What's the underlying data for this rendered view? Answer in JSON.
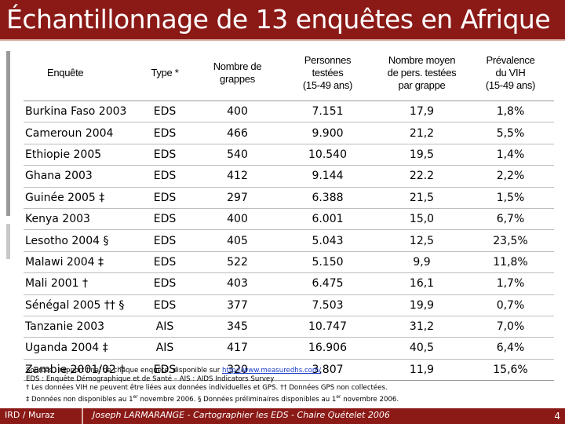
{
  "title": "Échantillonnage de 13 enquêtes en Afrique",
  "table": {
    "headers": [
      [
        "Enquête"
      ],
      [
        "Type *"
      ],
      [
        "Nombre de",
        "grappes"
      ],
      [
        "Personnes",
        "testées",
        "(15-49 ans)"
      ],
      [
        "Nombre moyen",
        "de pers. testées",
        "par grappe"
      ],
      [
        "Prévalence",
        "du VIH",
        "(15-49 ans)"
      ]
    ],
    "rows": [
      [
        "Burkina Faso 2003",
        "EDS",
        "400",
        "7.151",
        "17,9",
        "1,8%"
      ],
      [
        "Cameroun 2004",
        "EDS",
        "466",
        "9.900",
        "21,2",
        "5,5%"
      ],
      [
        "Ethiopie 2005",
        "EDS",
        "540",
        "10.540",
        "19,5",
        "1,4%"
      ],
      [
        "Ghana 2003",
        "EDS",
        "412",
        "9.144",
        "22.2",
        "2,2%"
      ],
      [
        "Guinée 2005 ‡",
        "EDS",
        "297",
        "6.388",
        "21,5",
        "1,5%"
      ],
      [
        "Kenya 2003",
        "EDS",
        "400",
        "6.001",
        "15,0",
        "6,7%"
      ],
      [
        "Lesotho 2004 §",
        "EDS",
        "405",
        "5.043",
        "12,5",
        "23,5%"
      ],
      [
        "Malawi 2004 ‡",
        "EDS",
        "522",
        "5.150",
        "9,9",
        "11,8%"
      ],
      [
        "Mali 2001 †",
        "EDS",
        "403",
        "6.475",
        "16,1",
        "1,7%"
      ],
      [
        "Sénégal 2005 †† §",
        "EDS",
        "377",
        "7.503",
        "19,9",
        "0,7%"
      ],
      [
        "Tanzanie 2003",
        "AIS",
        "345",
        "10.747",
        "31,2",
        "7,0%"
      ],
      [
        "Uganda 2004 ‡",
        "AIS",
        "417",
        "16.906",
        "40,5",
        "6,4%"
      ],
      [
        "Zambie 2001/02 †",
        "EDS",
        "320",
        "3.807",
        "11,9",
        "15,6%"
      ]
    ]
  },
  "notes": {
    "sources_prefix": "Sources : rapport final de chaque enquête, disponible sur ",
    "sources_link": "http://www.measuredhs.com/",
    "line2": "EDS : Enquête Démographique et de Santé – AIS : AIDS Indicators Survey",
    "line3": "† Les données VIH ne peuvent être liées aux données individuelles et GPS.   †† Données GPS non collectées.",
    "line4_a": "‡ Données non disponibles au 1",
    "line4_sup1": "er",
    "line4_b": " novembre 2006.  § Données préliminaires disponibles au 1",
    "line4_sup2": "er",
    "line4_c": " novembre 2006."
  },
  "footer": {
    "left": "IRD / Muraz",
    "center": "Joseph LARMARANGE - Cartographier les EDS - Chaire Quételet 2006",
    "page": "4"
  },
  "colors": {
    "brand": "#8b1a17",
    "link": "#1a3cc8"
  }
}
